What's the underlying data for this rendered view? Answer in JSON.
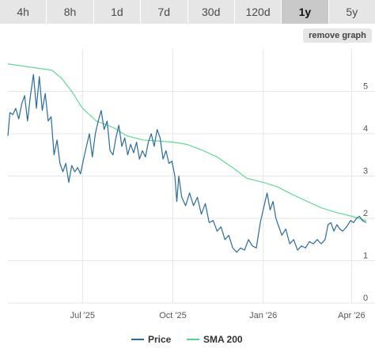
{
  "tabs": [
    {
      "label": "4h",
      "active": false
    },
    {
      "label": "8h",
      "active": false
    },
    {
      "label": "1d",
      "active": false
    },
    {
      "label": "7d",
      "active": false
    },
    {
      "label": "30d",
      "active": false
    },
    {
      "label": "120d",
      "active": false
    },
    {
      "label": "1y",
      "active": true
    },
    {
      "label": "5y",
      "active": false
    }
  ],
  "remove_graph_label": "remove graph",
  "colors": {
    "price": "#2a6b9c",
    "sma": "#55d68c",
    "grid": "#e6e6e6",
    "tab_bg": "#e6e6e6",
    "tab_active_bg": "#c9c9c9"
  },
  "chart_data": {
    "type": "line",
    "x_type": "date",
    "xlim": [
      "2025-04-16",
      "2026-04-16"
    ],
    "ylim": [
      0,
      6
    ],
    "yticks": [
      0,
      1,
      2,
      3,
      4,
      5
    ],
    "xticks": [
      {
        "date": "2025-07-01",
        "label": "Jul '25"
      },
      {
        "date": "2025-10-01",
        "label": "Oct '25"
      },
      {
        "date": "2026-01-01",
        "label": "Jan '26"
      },
      {
        "date": "2026-04-01",
        "label": "Apr '26"
      }
    ],
    "grid": true,
    "legend_position": "bottom-center",
    "series": [
      {
        "name": "Price",
        "color": "#2a6b9c",
        "points": [
          [
            "2025-04-16",
            3.95
          ],
          [
            "2025-04-18",
            4.5
          ],
          [
            "2025-04-21",
            4.45
          ],
          [
            "2025-04-24",
            4.6
          ],
          [
            "2025-04-27",
            4.35
          ],
          [
            "2025-04-30",
            4.7
          ],
          [
            "2025-05-03",
            4.9
          ],
          [
            "2025-05-06",
            4.3
          ],
          [
            "2025-05-09",
            4.9
          ],
          [
            "2025-05-12",
            5.4
          ],
          [
            "2025-05-15",
            4.6
          ],
          [
            "2025-05-18",
            5.35
          ],
          [
            "2025-05-21",
            4.55
          ],
          [
            "2025-05-24",
            4.95
          ],
          [
            "2025-05-27",
            4.3
          ],
          [
            "2025-05-30",
            4.4
          ],
          [
            "2025-06-02",
            3.5
          ],
          [
            "2025-06-05",
            3.85
          ],
          [
            "2025-06-08",
            3.3
          ],
          [
            "2025-06-11",
            3.1
          ],
          [
            "2025-06-14",
            3.3
          ],
          [
            "2025-06-17",
            2.85
          ],
          [
            "2025-06-20",
            3.25
          ],
          [
            "2025-06-23",
            3.1
          ],
          [
            "2025-06-26",
            3.2
          ],
          [
            "2025-06-29",
            3.05
          ],
          [
            "2025-07-02",
            3.4
          ],
          [
            "2025-07-05",
            3.7
          ],
          [
            "2025-07-08",
            4.0
          ],
          [
            "2025-07-11",
            3.45
          ],
          [
            "2025-07-14",
            4.0
          ],
          [
            "2025-07-17",
            4.3
          ],
          [
            "2025-07-20",
            4.55
          ],
          [
            "2025-07-23",
            4.1
          ],
          [
            "2025-07-26",
            4.3
          ],
          [
            "2025-07-29",
            3.6
          ],
          [
            "2025-08-01",
            3.5
          ],
          [
            "2025-08-04",
            3.9
          ],
          [
            "2025-08-07",
            4.2
          ],
          [
            "2025-08-10",
            3.7
          ],
          [
            "2025-08-13",
            3.9
          ],
          [
            "2025-08-16",
            3.5
          ],
          [
            "2025-08-19",
            3.75
          ],
          [
            "2025-08-22",
            3.55
          ],
          [
            "2025-08-25",
            3.8
          ],
          [
            "2025-08-28",
            3.4
          ],
          [
            "2025-08-31",
            3.6
          ],
          [
            "2025-09-03",
            3.45
          ],
          [
            "2025-09-06",
            3.8
          ],
          [
            "2025-09-09",
            4.0
          ],
          [
            "2025-09-12",
            3.7
          ],
          [
            "2025-09-15",
            4.1
          ],
          [
            "2025-09-18",
            3.9
          ],
          [
            "2025-09-21",
            3.4
          ],
          [
            "2025-09-24",
            3.6
          ],
          [
            "2025-09-27",
            3.3
          ],
          [
            "2025-09-30",
            3.35
          ],
          [
            "2025-10-03",
            3.0
          ],
          [
            "2025-10-05",
            2.4
          ],
          [
            "2025-10-07",
            3.0
          ],
          [
            "2025-10-10",
            2.5
          ],
          [
            "2025-10-14",
            2.3
          ],
          [
            "2025-10-18",
            2.6
          ],
          [
            "2025-10-22",
            2.3
          ],
          [
            "2025-10-26",
            2.5
          ],
          [
            "2025-10-30",
            2.1
          ],
          [
            "2025-11-03",
            2.35
          ],
          [
            "2025-11-07",
            1.9
          ],
          [
            "2025-11-11",
            1.95
          ],
          [
            "2025-11-15",
            1.7
          ],
          [
            "2025-11-19",
            1.8
          ],
          [
            "2025-11-23",
            1.5
          ],
          [
            "2025-11-27",
            1.6
          ],
          [
            "2025-12-01",
            1.3
          ],
          [
            "2025-12-05",
            1.2
          ],
          [
            "2025-12-09",
            1.3
          ],
          [
            "2025-12-13",
            1.25
          ],
          [
            "2025-12-17",
            1.5
          ],
          [
            "2025-12-21",
            1.35
          ],
          [
            "2025-12-25",
            1.3
          ],
          [
            "2025-12-29",
            1.9
          ],
          [
            "2026-01-02",
            2.3
          ],
          [
            "2026-01-05",
            2.6
          ],
          [
            "2026-01-08",
            2.2
          ],
          [
            "2026-01-11",
            2.4
          ],
          [
            "2026-01-14",
            2.0
          ],
          [
            "2026-01-17",
            1.8
          ],
          [
            "2026-01-20",
            1.6
          ],
          [
            "2026-01-24",
            1.75
          ],
          [
            "2026-01-28",
            1.4
          ],
          [
            "2026-02-01",
            1.5
          ],
          [
            "2026-02-05",
            1.25
          ],
          [
            "2026-02-09",
            1.35
          ],
          [
            "2026-02-13",
            1.3
          ],
          [
            "2026-02-17",
            1.45
          ],
          [
            "2026-02-21",
            1.4
          ],
          [
            "2026-02-25",
            1.5
          ],
          [
            "2026-03-01",
            1.4
          ],
          [
            "2026-03-05",
            1.5
          ],
          [
            "2026-03-08",
            1.85
          ],
          [
            "2026-03-11",
            1.9
          ],
          [
            "2026-03-14",
            1.7
          ],
          [
            "2026-03-17",
            1.85
          ],
          [
            "2026-03-20",
            1.75
          ],
          [
            "2026-03-23",
            1.7
          ],
          [
            "2026-03-27",
            1.8
          ],
          [
            "2026-03-31",
            1.95
          ],
          [
            "2026-04-03",
            1.9
          ],
          [
            "2026-04-06",
            2.0
          ],
          [
            "2026-04-09",
            2.05
          ],
          [
            "2026-04-12",
            1.95
          ],
          [
            "2026-04-16",
            1.9
          ]
        ]
      },
      {
        "name": "SMA 200",
        "color": "#55d68c",
        "points": [
          [
            "2025-04-16",
            5.65
          ],
          [
            "2025-05-01",
            5.6
          ],
          [
            "2025-05-16",
            5.55
          ],
          [
            "2025-05-31",
            5.5
          ],
          [
            "2025-06-10",
            5.3
          ],
          [
            "2025-06-20",
            5.0
          ],
          [
            "2025-07-01",
            4.6
          ],
          [
            "2025-07-15",
            4.3
          ],
          [
            "2025-08-01",
            4.15
          ],
          [
            "2025-08-15",
            3.95
          ],
          [
            "2025-09-01",
            3.85
          ],
          [
            "2025-09-15",
            3.83
          ],
          [
            "2025-10-01",
            3.8
          ],
          [
            "2025-10-15",
            3.75
          ],
          [
            "2025-11-01",
            3.6
          ],
          [
            "2025-11-15",
            3.45
          ],
          [
            "2025-12-01",
            3.2
          ],
          [
            "2025-12-15",
            2.95
          ],
          [
            "2026-01-01",
            2.85
          ],
          [
            "2026-01-15",
            2.75
          ],
          [
            "2026-02-01",
            2.55
          ],
          [
            "2026-02-15",
            2.4
          ],
          [
            "2026-03-01",
            2.25
          ],
          [
            "2026-03-15",
            2.15
          ],
          [
            "2026-04-01",
            2.05
          ],
          [
            "2026-04-16",
            1.95
          ]
        ]
      }
    ]
  }
}
